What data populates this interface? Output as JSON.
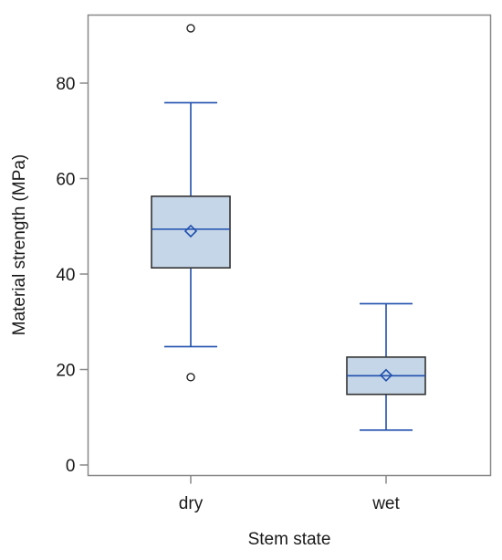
{
  "chart_data": {
    "type": "box",
    "xlabel": "Stem state",
    "ylabel": "Material strength (MPa)",
    "ylim": [
      -2,
      94
    ],
    "yticks": [
      0,
      20,
      40,
      60,
      80
    ],
    "grid": false,
    "legend": "none",
    "categories": [
      "dry",
      "wet"
    ],
    "boxes": [
      {
        "category": "dry",
        "whisker_low": 24.8,
        "q1": 41.3,
        "median": 49.4,
        "mean": 49.0,
        "q3": 56.3,
        "whisker_high": 75.9,
        "outliers": [
          91.5,
          18.4
        ]
      },
      {
        "category": "wet",
        "whisker_low": 7.3,
        "q1": 14.8,
        "median": 18.7,
        "mean": 18.8,
        "q3": 22.6,
        "whisker_high": 33.8,
        "outliers": []
      }
    ],
    "colors": {
      "box_fill": "#c5d6e8",
      "box_outline": "#333333",
      "stat_line": "#1f4fad",
      "outlier": "#222222",
      "frame": "#888888"
    }
  }
}
